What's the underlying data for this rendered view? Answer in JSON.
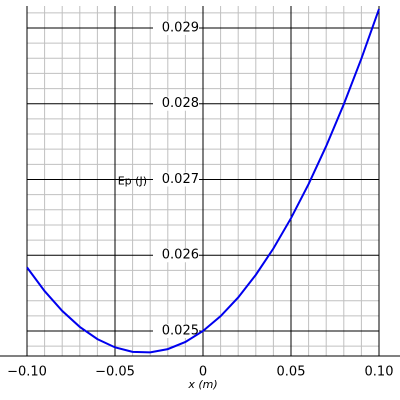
{
  "chart_data": {
    "type": "line",
    "x_label": "x (m)",
    "y_label": "Ep (J)",
    "x": [
      -0.1,
      -0.09,
      -0.08,
      -0.07,
      -0.06,
      -0.05,
      -0.04,
      -0.03,
      -0.02,
      -0.01,
      0,
      0.01,
      0.02,
      0.03,
      0.04,
      0.05,
      0.06,
      0.07,
      0.08,
      0.09,
      0.1
    ],
    "series": [
      {
        "color": "#0000ee",
        "values": [
          0.02584,
          0.025527,
          0.025265,
          0.025054,
          0.024893,
          0.024784,
          0.024725,
          0.024718,
          0.024761,
          0.024855,
          0.025,
          0.025196,
          0.025443,
          0.025741,
          0.026089,
          0.026489,
          0.026939,
          0.027441,
          0.027993,
          0.028596,
          0.02925
        ]
      }
    ],
    "xlim": [
      -0.1,
      0.1
    ],
    "ylim": [
      0.02467,
      0.02929
    ],
    "xticks": [
      {
        "value": -0.1,
        "label": "−0.10"
      },
      {
        "value": -0.05,
        "label": "−0.05"
      },
      0,
      0.05,
      {
        "value": 0.1,
        "label": "0.10"
      }
    ],
    "yticks": [
      0.025,
      0.026,
      0.027,
      0.028,
      0.029
    ],
    "minor_xticks": [
      -0.09,
      -0.08,
      -0.07,
      -0.06,
      -0.04,
      -0.03,
      -0.02,
      -0.01,
      0.01,
      0.02,
      0.03,
      0.04,
      0.06,
      0.07,
      0.08,
      0.09
    ],
    "minor_yticks": [
      0.0248,
      0.0252,
      0.0254,
      0.0256,
      0.0258,
      0.0262,
      0.0264,
      0.0266,
      0.0268,
      0.0272,
      0.0274,
      0.0276,
      0.0278,
      0.0282,
      0.0284,
      0.0286,
      0.0288,
      0.0292
    ],
    "grid": true
  }
}
